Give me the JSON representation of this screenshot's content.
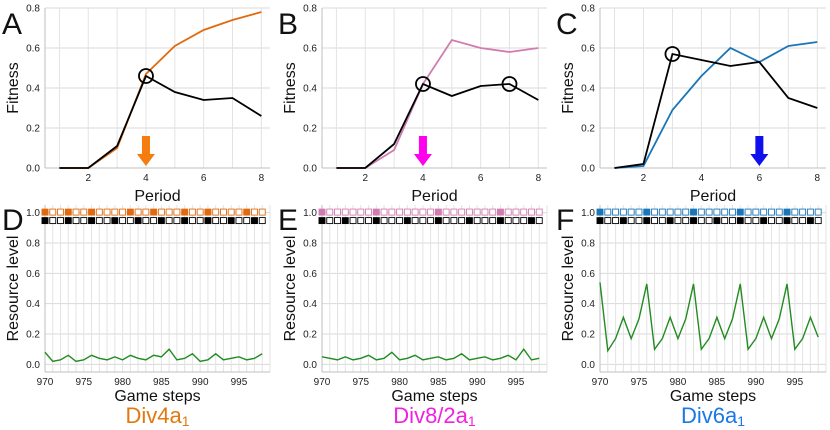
{
  "chart_data": [
    {
      "panel": "A",
      "type": "line",
      "xlabel": "Period",
      "ylabel": "Fitness",
      "xlim": [
        0.5,
        8.3
      ],
      "ylim": [
        0,
        0.8
      ],
      "xticks": [
        2,
        4,
        6,
        8
      ],
      "yticks": [
        0.0,
        0.2,
        0.4,
        0.6,
        0.8
      ],
      "grid": true,
      "series": [
        {
          "name": "colored",
          "color": "#e06a10",
          "x": [
            1,
            2,
            3,
            4,
            5,
            6,
            7,
            8
          ],
          "y": [
            0,
            0,
            0.1,
            0.47,
            0.61,
            0.69,
            0.74,
            0.78
          ]
        },
        {
          "name": "black",
          "color": "#000000",
          "x": [
            1,
            2,
            3,
            4,
            5,
            6,
            7,
            8
          ],
          "y": [
            0,
            0,
            0.11,
            0.46,
            0.38,
            0.34,
            0.35,
            0.26
          ]
        }
      ],
      "circles": [
        {
          "x": 4,
          "y": 0.46
        }
      ],
      "arrow": {
        "x": 4,
        "color": "#f57d10"
      }
    },
    {
      "panel": "B",
      "type": "line",
      "xlabel": "Period",
      "ylabel": "Fitness",
      "xlim": [
        0.5,
        8.3
      ],
      "ylim": [
        0,
        0.8
      ],
      "xticks": [
        2,
        4,
        6,
        8
      ],
      "yticks": [
        0.0,
        0.2,
        0.4,
        0.6,
        0.8
      ],
      "grid": true,
      "series": [
        {
          "name": "colored",
          "color": "#d07cb0",
          "x": [
            1,
            2,
            3,
            4,
            5,
            6,
            7,
            8
          ],
          "y": [
            0,
            0,
            0.09,
            0.42,
            0.64,
            0.6,
            0.58,
            0.6
          ]
        },
        {
          "name": "black",
          "color": "#000000",
          "x": [
            1,
            2,
            3,
            4,
            5,
            6,
            7,
            8
          ],
          "y": [
            0,
            0,
            0.12,
            0.42,
            0.36,
            0.41,
            0.42,
            0.34
          ]
        }
      ],
      "circles": [
        {
          "x": 4,
          "y": 0.42
        },
        {
          "x": 7,
          "y": 0.42
        }
      ],
      "arrow": {
        "x": 4,
        "color": "#ff00ee"
      }
    },
    {
      "panel": "C",
      "type": "line",
      "xlabel": "Period",
      "ylabel": "Fitness",
      "xlim": [
        0.5,
        8.3
      ],
      "ylim": [
        0,
        0.8
      ],
      "xticks": [
        2,
        4,
        6,
        8
      ],
      "yticks": [
        0.0,
        0.2,
        0.4,
        0.6,
        0.8
      ],
      "grid": true,
      "series": [
        {
          "name": "colored",
          "color": "#1a76b8",
          "x": [
            1,
            2,
            3,
            4,
            5,
            6,
            7,
            8
          ],
          "y": [
            0,
            0.01,
            0.29,
            0.46,
            0.6,
            0.53,
            0.61,
            0.63
          ]
        },
        {
          "name": "black",
          "color": "#000000",
          "x": [
            1,
            2,
            3,
            4,
            5,
            6,
            7,
            8
          ],
          "y": [
            0,
            0.02,
            0.57,
            0.54,
            0.51,
            0.53,
            0.35,
            0.3
          ]
        }
      ],
      "circles": [
        {
          "x": 3,
          "y": 0.57
        }
      ],
      "arrow": {
        "x": 6,
        "color": "#1010ee"
      }
    },
    {
      "panel": "D",
      "type": "line",
      "xlabel": "Game steps",
      "ylabel": "Resource level",
      "xlim": [
        970,
        999
      ],
      "ylim": [
        -0.05,
        1.05
      ],
      "xticks": [
        970,
        975,
        980,
        985,
        990,
        995
      ],
      "yticks": [
        0.0,
        0.2,
        0.4,
        0.6,
        0.8,
        1.0
      ],
      "grid": true,
      "line_color": "#228b22",
      "x_start": 970,
      "y": [
        0.08,
        0.02,
        0.03,
        0.06,
        0.02,
        0.03,
        0.06,
        0.04,
        0.03,
        0.05,
        0.03,
        0.06,
        0.04,
        0.03,
        0.06,
        0.05,
        0.1,
        0.03,
        0.04,
        0.07,
        0.02,
        0.03,
        0.07,
        0.03,
        0.04,
        0.05,
        0.03,
        0.04,
        0.07
      ],
      "top_row_color": "#e06a10",
      "top_row_filled": [
        1,
        0,
        0,
        1,
        0,
        0,
        1,
        0,
        0,
        0,
        0,
        1,
        0,
        0,
        1,
        0,
        0,
        0,
        1,
        0,
        0,
        1,
        0,
        0,
        0,
        0,
        1,
        0,
        0
      ],
      "bottom_row_filled": [
        1,
        0,
        0,
        1,
        0,
        0,
        1,
        0,
        0,
        1,
        0,
        0,
        1,
        0,
        0,
        1,
        0,
        0,
        1,
        0,
        0,
        1,
        0,
        0,
        1,
        0,
        0,
        1,
        0
      ],
      "caption": "Div4a",
      "caption_sub": "1",
      "caption_color": "#e07a10"
    },
    {
      "panel": "E",
      "type": "line",
      "xlabel": "Game steps",
      "ylabel": "Resource level",
      "xlim": [
        970,
        999
      ],
      "ylim": [
        -0.05,
        1.05
      ],
      "xticks": [
        970,
        975,
        980,
        985,
        990,
        995
      ],
      "yticks": [
        0.0,
        0.2,
        0.4,
        0.6,
        0.8,
        1.0
      ],
      "grid": true,
      "line_color": "#228b22",
      "x_start": 970,
      "y": [
        0.05,
        0.04,
        0.03,
        0.05,
        0.03,
        0.04,
        0.06,
        0.03,
        0.04,
        0.08,
        0.03,
        0.04,
        0.06,
        0.03,
        0.04,
        0.05,
        0.03,
        0.04,
        0.07,
        0.03,
        0.04,
        0.05,
        0.03,
        0.04,
        0.06,
        0.03,
        0.1,
        0.03,
        0.04
      ],
      "top_row_color": "#d07cb0",
      "top_row_filled": [
        1,
        0,
        0,
        0,
        0,
        0,
        0,
        1,
        0,
        0,
        0,
        0,
        0,
        0,
        0,
        1,
        0,
        0,
        0,
        0,
        0,
        0,
        0,
        1,
        0,
        0,
        0,
        0,
        0
      ],
      "bottom_row_filled": [
        1,
        0,
        0,
        1,
        0,
        0,
        0,
        1,
        0,
        0,
        0,
        1,
        0,
        0,
        0,
        1,
        0,
        0,
        0,
        1,
        0,
        0,
        0,
        1,
        0,
        0,
        0,
        1,
        0
      ],
      "caption": "Div8/2a",
      "caption_sub": "1",
      "caption_color": "#f022e0"
    },
    {
      "panel": "F",
      "type": "line",
      "xlabel": "Game steps",
      "ylabel": "Resource level",
      "xlim": [
        970,
        999
      ],
      "ylim": [
        -0.05,
        1.05
      ],
      "xticks": [
        970,
        975,
        980,
        985,
        990,
        995
      ],
      "yticks": [
        0.0,
        0.2,
        0.4,
        0.6,
        0.8,
        1.0
      ],
      "grid": true,
      "line_color": "#228b22",
      "x_start": 970,
      "y": [
        0.54,
        0.09,
        0.17,
        0.31,
        0.17,
        0.3,
        0.53,
        0.1,
        0.17,
        0.31,
        0.17,
        0.3,
        0.53,
        0.1,
        0.17,
        0.31,
        0.17,
        0.3,
        0.53,
        0.1,
        0.17,
        0.31,
        0.17,
        0.3,
        0.53,
        0.1,
        0.17,
        0.31,
        0.18
      ],
      "top_row_color": "#1a76b8",
      "top_row_filled": [
        1,
        0,
        0,
        0,
        0,
        0,
        1,
        0,
        0,
        0,
        0,
        0,
        1,
        0,
        0,
        0,
        0,
        0,
        1,
        0,
        0,
        0,
        0,
        0,
        1,
        0,
        0,
        0,
        0
      ],
      "bottom_row_filled": [
        1,
        0,
        0,
        1,
        0,
        0,
        1,
        0,
        0,
        1,
        0,
        0,
        1,
        0,
        0,
        1,
        0,
        0,
        1,
        0,
        0,
        1,
        0,
        0,
        1,
        0,
        0,
        1,
        0
      ],
      "caption": "Div6a",
      "caption_sub": "1",
      "caption_color": "#1a78e8"
    }
  ]
}
